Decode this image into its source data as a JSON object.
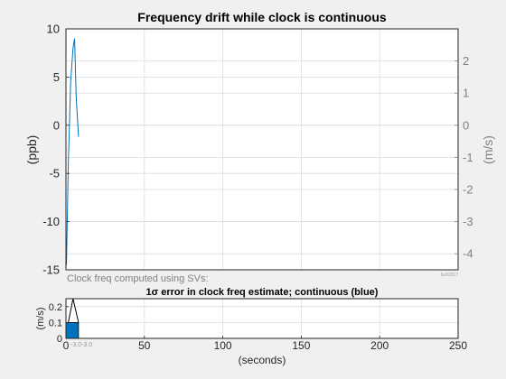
{
  "colors": {
    "background": "#f0f0f0",
    "axes_bg": "#ffffff",
    "grid": "#dcdcdc",
    "axis": "#262626",
    "right_axis": "#808080",
    "line": "#0072bd",
    "bar_fill": "#0072bd",
    "bar_edge": "#000000"
  },
  "chart_data": [
    {
      "type": "line",
      "title": "Frequency drift while clock is continuous",
      "ylabel": "(ppb)",
      "ylabel_right": "(m/s)",
      "ylim": [
        -15,
        10
      ],
      "ylim_right": [
        -4.5,
        3.0
      ],
      "xlim": [
        0,
        250
      ],
      "yticks": [
        10,
        5,
        0,
        -5,
        -10,
        -15
      ],
      "yticks_right": [
        2,
        1,
        0,
        -1,
        -2,
        -3,
        -4
      ],
      "grid": true,
      "series": [
        {
          "color": "#0072bd",
          "x": [
            0.3,
            1.5,
            3.0,
            4.5,
            5.5,
            6.5,
            8.0
          ],
          "y": [
            -14.5,
            -4.0,
            4.5,
            8.0,
            9.0,
            3.0,
            -1.2
          ]
        }
      ],
      "footnote": "Clock freq computed using SVs:",
      "corner_note": "6u02017"
    },
    {
      "type": "bar",
      "title": "1σ error in clock freq estimate; continuous (blue)",
      "ylabel": "(m/s)",
      "xlabel": "(seconds)",
      "xlim": [
        0,
        250
      ],
      "ylim": [
        0,
        0.25
      ],
      "xticks": [
        0,
        50,
        100,
        150,
        200,
        250
      ],
      "yticks": [
        0.2,
        0.1,
        0
      ],
      "grid": true,
      "bars": [
        {
          "x0": 0,
          "x1": 8,
          "y": 0.1
        }
      ],
      "spike": {
        "x": [
          1.5,
          4.5,
          8.0
        ],
        "y": [
          0.1,
          0.25,
          0.1
        ]
      },
      "tick_overlay_label": "-3.0-3.0"
    }
  ]
}
